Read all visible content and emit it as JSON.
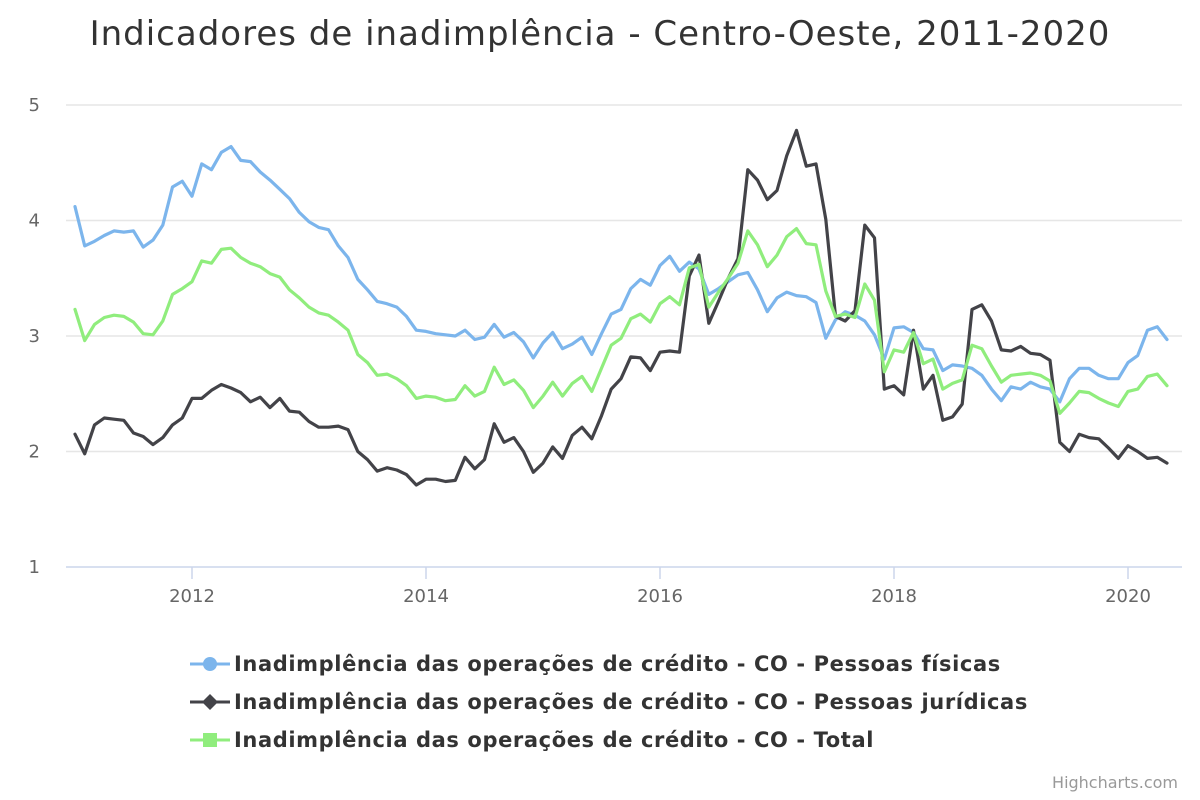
{
  "credits": "Highcharts.com",
  "chart_data": {
    "type": "line",
    "title": "Indicadores de inadimplência - Centro-Oeste, 2011-2020",
    "xlabel": "",
    "ylabel": "",
    "ylim": [
      1,
      5
    ],
    "xlim": [
      "2011-01",
      "2020-05"
    ],
    "grid": true,
    "legend_position": "bottom",
    "yticks": [
      "1",
      "2",
      "3",
      "4",
      "5"
    ],
    "xticks": [
      "2012",
      "2014",
      "2016",
      "2018",
      "2020"
    ],
    "start_month": "2011-01",
    "series": [
      {
        "name": "Inadimplência das operações de crédito - CO - Pessoas físicas",
        "color": "#7cb5ec",
        "marker": "circle",
        "values": [
          4.12,
          3.78,
          3.82,
          3.87,
          3.91,
          3.9,
          3.91,
          3.77,
          3.83,
          3.96,
          4.29,
          4.34,
          4.21,
          4.49,
          4.44,
          4.59,
          4.64,
          4.52,
          4.51,
          4.42,
          4.35,
          4.27,
          4.19,
          4.07,
          3.99,
          3.94,
          3.92,
          3.78,
          3.68,
          3.49,
          3.4,
          3.3,
          3.28,
          3.25,
          3.17,
          3.05,
          3.04,
          3.02,
          3.01,
          3.0,
          3.05,
          2.97,
          2.99,
          3.1,
          2.99,
          3.03,
          2.95,
          2.81,
          2.94,
          3.03,
          2.89,
          2.93,
          2.99,
          2.84,
          3.02,
          3.19,
          3.23,
          3.41,
          3.49,
          3.44,
          3.61,
          3.69,
          3.56,
          3.64,
          3.58,
          3.36,
          3.41,
          3.47,
          3.53,
          3.55,
          3.4,
          3.21,
          3.33,
          3.38,
          3.35,
          3.34,
          3.29,
          2.98,
          3.14,
          3.21,
          3.18,
          3.13,
          3.01,
          2.8,
          3.07,
          3.08,
          3.03,
          2.89,
          2.88,
          2.7,
          2.75,
          2.74,
          2.72,
          2.66,
          2.54,
          2.44,
          2.56,
          2.54,
          2.6,
          2.56,
          2.54,
          2.43,
          2.63,
          2.72,
          2.72,
          2.66,
          2.63,
          2.63,
          2.77,
          2.83,
          3.05,
          3.08,
          2.97
        ]
      },
      {
        "name": "Inadimplência das operações de crédito - CO - Pessoas jurídicas",
        "color": "#434348",
        "marker": "diamond",
        "values": [
          2.15,
          1.98,
          2.23,
          2.29,
          2.28,
          2.27,
          2.16,
          2.13,
          2.06,
          2.12,
          2.23,
          2.29,
          2.46,
          2.46,
          2.53,
          2.58,
          2.55,
          2.51,
          2.43,
          2.47,
          2.38,
          2.46,
          2.35,
          2.34,
          2.26,
          2.21,
          2.21,
          2.22,
          2.19,
          2.0,
          1.93,
          1.83,
          1.86,
          1.84,
          1.8,
          1.71,
          1.76,
          1.76,
          1.74,
          1.75,
          1.95,
          1.85,
          1.93,
          2.24,
          2.08,
          2.12,
          2.0,
          1.82,
          1.9,
          2.04,
          1.94,
          2.14,
          2.21,
          2.11,
          2.31,
          2.54,
          2.63,
          2.82,
          2.81,
          2.7,
          2.86,
          2.87,
          2.86,
          3.52,
          3.7,
          3.11,
          3.3,
          3.5,
          3.67,
          4.44,
          4.35,
          4.18,
          4.26,
          4.56,
          4.78,
          4.47,
          4.49,
          4.01,
          3.17,
          3.13,
          3.22,
          3.96,
          3.85,
          2.54,
          2.57,
          2.49,
          3.05,
          2.54,
          2.66,
          2.27,
          2.3,
          2.41,
          3.23,
          3.27,
          3.13,
          2.88,
          2.87,
          2.91,
          2.85,
          2.84,
          2.79,
          2.08,
          2.0,
          2.15,
          2.12,
          2.11,
          2.03,
          1.94,
          2.05,
          2.0,
          1.94,
          1.95,
          1.9
        ]
      },
      {
        "name": "Inadimplência das operações de crédito - CO - Total",
        "color": "#90ed7d",
        "marker": "square",
        "values": [
          3.23,
          2.96,
          3.1,
          3.16,
          3.18,
          3.17,
          3.12,
          3.02,
          3.01,
          3.13,
          3.36,
          3.41,
          3.47,
          3.65,
          3.63,
          3.75,
          3.76,
          3.68,
          3.63,
          3.6,
          3.54,
          3.51,
          3.4,
          3.33,
          3.25,
          3.2,
          3.18,
          3.12,
          3.05,
          2.84,
          2.77,
          2.66,
          2.67,
          2.63,
          2.57,
          2.46,
          2.48,
          2.47,
          2.44,
          2.45,
          2.57,
          2.48,
          2.52,
          2.73,
          2.58,
          2.62,
          2.53,
          2.38,
          2.48,
          2.6,
          2.48,
          2.59,
          2.65,
          2.52,
          2.72,
          2.92,
          2.98,
          3.15,
          3.19,
          3.12,
          3.28,
          3.34,
          3.27,
          3.59,
          3.62,
          3.25,
          3.38,
          3.5,
          3.63,
          3.91,
          3.79,
          3.6,
          3.7,
          3.86,
          3.93,
          3.8,
          3.79,
          3.39,
          3.17,
          3.19,
          3.16,
          3.45,
          3.31,
          2.69,
          2.88,
          2.86,
          3.03,
          2.76,
          2.8,
          2.54,
          2.59,
          2.62,
          2.92,
          2.89,
          2.74,
          2.6,
          2.66,
          2.67,
          2.68,
          2.66,
          2.61,
          2.33,
          2.42,
          2.52,
          2.51,
          2.46,
          2.42,
          2.39,
          2.52,
          2.54,
          2.65,
          2.67,
          2.57
        ]
      }
    ]
  }
}
